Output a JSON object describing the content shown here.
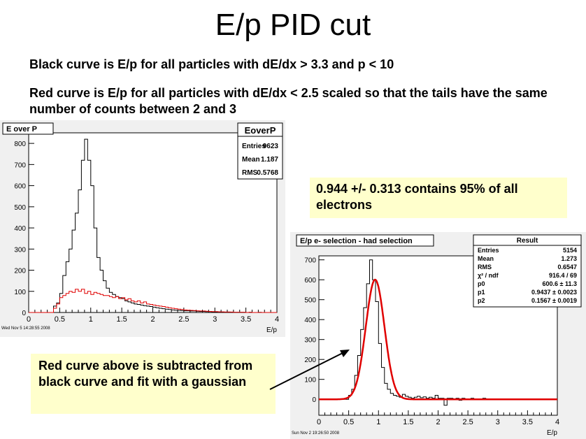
{
  "slide": {
    "title": "E/p PID cut",
    "bullet1": "Black curve is E/p for all particles with dE/dx > 3.3 and p < 10",
    "bullet2": "Red curve is E/p for all particles with dE/dx < 2.5 scaled so that the tails have the same number of counts between 2 and 3",
    "note_cut": "0.944 +/- 0.313 contains 95% of all electrons",
    "note_subtract": "Red curve above is subtracted from black curve and fit with a gaussian"
  },
  "colors": {
    "hist_black": "#000000",
    "hist_red": "#e00000",
    "fit_red": "#e00000",
    "note_bg": "#ffffcc",
    "frame_bg": "#f0f0f0"
  },
  "chart_data": [
    {
      "type": "histogram",
      "title": "E over P",
      "xlabel": "E/p",
      "timestamp": "Wed Nov  5 14:28:55 2008",
      "xlim": [
        0,
        4
      ],
      "ylim": [
        0,
        850
      ],
      "xticks": [
        "0",
        "0.5",
        "1",
        "1.5",
        "2",
        "2.5",
        "3",
        "3.5",
        "4"
      ],
      "yticks": [
        "0",
        "100",
        "200",
        "300",
        "400",
        "500",
        "600",
        "700",
        "800"
      ],
      "stats_box": {
        "name": "EoverP",
        "rows": [
          {
            "label": "Entries",
            "value": "9623"
          },
          {
            "label": "Mean",
            "value": "1.187"
          },
          {
            "label": "RMS",
            "value": "0.5768"
          }
        ]
      },
      "bin_width": 0.05,
      "series": [
        {
          "color": "#000000",
          "values": [
            0,
            0,
            0,
            0,
            0,
            0,
            0,
            0,
            30,
            45,
            90,
            175,
            240,
            300,
            390,
            470,
            580,
            720,
            820,
            720,
            600,
            400,
            260,
            200,
            150,
            115,
            95,
            85,
            75,
            70,
            65,
            55,
            50,
            45,
            40,
            38,
            35,
            32,
            30,
            28,
            25,
            22,
            20,
            18,
            16,
            14,
            12,
            11,
            10,
            9,
            8,
            8,
            7,
            7,
            6,
            5,
            5,
            4,
            4,
            3,
            3,
            3,
            2,
            2,
            2,
            1,
            1,
            1,
            1,
            1,
            0,
            1,
            0,
            0,
            1,
            0,
            0,
            0,
            0,
            0
          ]
        },
        {
          "color": "#e00000",
          "values": [
            0,
            0,
            0,
            0,
            0,
            0,
            0,
            0,
            20,
            40,
            70,
            80,
            90,
            100,
            95,
            110,
            100,
            110,
            90,
            100,
            85,
            95,
            90,
            85,
            80,
            80,
            75,
            70,
            75,
            65,
            70,
            60,
            65,
            55,
            50,
            55,
            45,
            50,
            40,
            38,
            35,
            32,
            30,
            28,
            25,
            22,
            20,
            18,
            16,
            14,
            12,
            11,
            10,
            9,
            8,
            7,
            7,
            6,
            5,
            4,
            4,
            3,
            3,
            2,
            2,
            2,
            1,
            1,
            1,
            1,
            0,
            1,
            0,
            0,
            0,
            0,
            0,
            0,
            0,
            0
          ]
        }
      ]
    },
    {
      "type": "histogram",
      "title": "E/p e- selection - had selection",
      "xlabel": "E/p",
      "timestamp": "Sun Nov  2 19:26:50 2008",
      "xlim": [
        0,
        4
      ],
      "ylim": [
        -80,
        720
      ],
      "xticks": [
        "0",
        "0.5",
        "1",
        "1.5",
        "2",
        "2.5",
        "3",
        "3.5",
        "4"
      ],
      "yticks": [
        "0",
        "100",
        "200",
        "300",
        "400",
        "500",
        "600",
        "700"
      ],
      "stats_box": {
        "name": "Result",
        "rows": [
          {
            "label": "Entries",
            "value": "5154"
          },
          {
            "label": "Mean",
            "value": "1.273"
          },
          {
            "label": "RMS",
            "value": "0.6547"
          },
          {
            "label": "χ² / ndf",
            "value": "916.4 / 69"
          },
          {
            "label": "p0",
            "value": "600.6 ± 11.3"
          },
          {
            "label": "p1",
            "value": "0.9437 ± 0.0023"
          },
          {
            "label": "p2",
            "value": "0.1567 ± 0.0019"
          }
        ]
      },
      "bin_width": 0.05,
      "series": [
        {
          "color": "#000000",
          "values": [
            0,
            0,
            0,
            0,
            0,
            0,
            0,
            0,
            0,
            0,
            20,
            50,
            120,
            220,
            350,
            460,
            580,
            700,
            600,
            490,
            280,
            160,
            80,
            50,
            30,
            20,
            15,
            10,
            25,
            15,
            10,
            5,
            10,
            15,
            8,
            12,
            5,
            10,
            5,
            20,
            5,
            5,
            -30,
            5,
            5,
            0,
            5,
            -5,
            5,
            0,
            0,
            5,
            0,
            0,
            0,
            5,
            0,
            0,
            0,
            0,
            0,
            0,
            0,
            0,
            0,
            0,
            0,
            0,
            0,
            0,
            0,
            0,
            0,
            0,
            0,
            0,
            0,
            0,
            0,
            0
          ]
        }
      ],
      "fit": {
        "function": "gaus",
        "amplitude": 600.6,
        "mean": 0.9437,
        "sigma": 0.1567,
        "color": "#e00000"
      }
    }
  ]
}
